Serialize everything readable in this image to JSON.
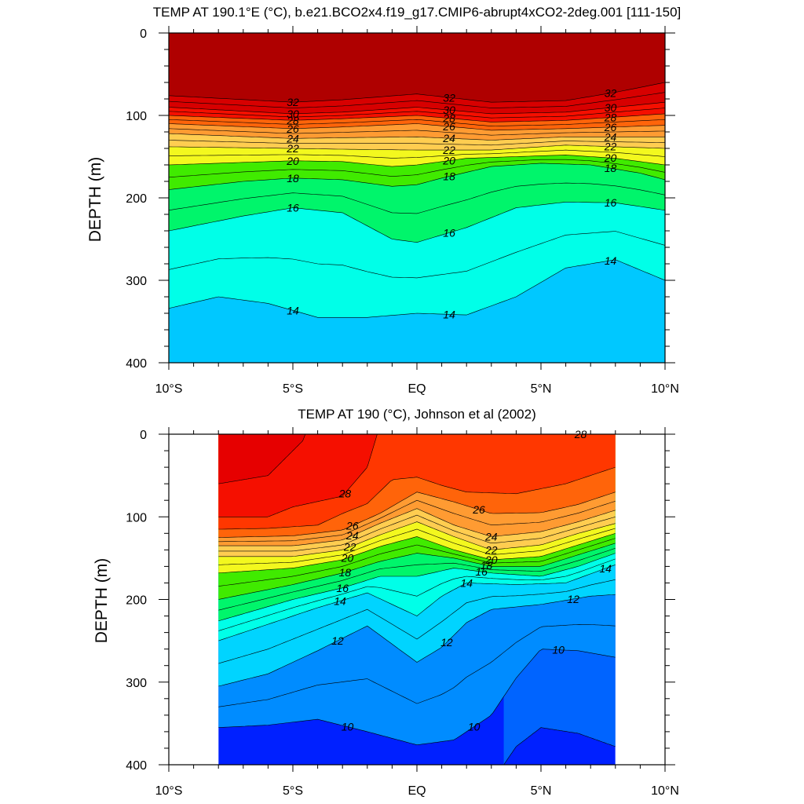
{
  "chart_data": [
    {
      "type": "contour",
      "title": "TEMP AT 190.1°E (°C), b.e21.BCO2x4.f19_g17.CMIP6-abrupt4xCO2-2deg.001 [111-150]",
      "ylabel": "DEPTH (m)",
      "xlabel": "",
      "xlim": [
        -10,
        10
      ],
      "ylim": [
        0,
        400
      ],
      "y_reversed": true,
      "x_ticks": [
        {
          "value": -10,
          "label": "10°S"
        },
        {
          "value": -5,
          "label": "5°S"
        },
        {
          "value": 0,
          "label": "EQ"
        },
        {
          "value": 5,
          "label": "5°N"
        },
        {
          "value": 10,
          "label": "10°N"
        }
      ],
      "y_ticks": [
        {
          "value": 0,
          "label": "0"
        },
        {
          "value": 100,
          "label": "100"
        },
        {
          "value": 200,
          "label": "200"
        },
        {
          "value": 300,
          "label": "300"
        },
        {
          "value": 400,
          "label": "400"
        }
      ],
      "data_x_range": [
        -10,
        10
      ],
      "levels_min": 12.5,
      "levels_max": 32.5,
      "level_step": 1,
      "contours": [
        {
          "level": 32,
          "depth_at_x": [
            [
              -10,
              76
            ],
            [
              -5,
              84
            ],
            [
              -3,
              81
            ],
            [
              0,
              74
            ],
            [
              3,
              84
            ],
            [
              6,
              82
            ],
            [
              8,
              72
            ],
            [
              10,
              60
            ]
          ]
        },
        {
          "level": 30,
          "depth_at_x": [
            [
              -10,
              90
            ],
            [
              -5,
              98
            ],
            [
              -3,
              96
            ],
            [
              0,
              90
            ],
            [
              3,
              98
            ],
            [
              6,
              96
            ],
            [
              8,
              90
            ],
            [
              10,
              84
            ]
          ]
        },
        {
          "level": 28,
          "depth_at_x": [
            [
              -10,
              100
            ],
            [
              -5,
              106
            ],
            [
              -3,
              104
            ],
            [
              0,
              100
            ],
            [
              3,
              108
            ],
            [
              6,
              106
            ],
            [
              8,
              102
            ],
            [
              10,
              98
            ]
          ]
        },
        {
          "level": 26,
          "depth_at_x": [
            [
              -10,
              110
            ],
            [
              -5,
              116
            ],
            [
              -3,
              114
            ],
            [
              0,
              110
            ],
            [
              3,
              118
            ],
            [
              6,
              116
            ],
            [
              8,
              114
            ],
            [
              10,
              112
            ]
          ]
        },
        {
          "level": 24,
          "depth_at_x": [
            [
              -10,
              122
            ],
            [
              -5,
              128
            ],
            [
              -3,
              127
            ],
            [
              0,
              126
            ],
            [
              3,
              130
            ],
            [
              6,
              126
            ],
            [
              8,
              126
            ],
            [
              10,
              126
            ]
          ]
        },
        {
          "level": 22,
          "depth_at_x": [
            [
              -10,
              138
            ],
            [
              -5,
              140
            ],
            [
              -3,
              141
            ],
            [
              0,
              142
            ],
            [
              3,
              142
            ],
            [
              6,
              136
            ],
            [
              8,
              138
            ],
            [
              10,
              140
            ]
          ]
        },
        {
          "level": 20,
          "depth_at_x": [
            [
              -10,
              160
            ],
            [
              -5,
              155
            ],
            [
              -3,
              156
            ],
            [
              -1,
              162
            ],
            [
              0,
              160
            ],
            [
              2,
              152
            ],
            [
              4,
              150
            ],
            [
              6,
              148
            ],
            [
              8,
              152
            ],
            [
              10,
              160
            ]
          ]
        },
        {
          "level": 18,
          "depth_at_x": [
            [
              -10,
              190
            ],
            [
              -7,
              180
            ],
            [
              -5,
              176
            ],
            [
              -3,
              178
            ],
            [
              -1,
              186
            ],
            [
              0,
              184
            ],
            [
              1,
              176
            ],
            [
              3,
              162
            ],
            [
              5,
              158
            ],
            [
              7,
              160
            ],
            [
              9,
              170
            ],
            [
              10,
              178
            ]
          ]
        },
        {
          "level": 16,
          "depth_at_x": [
            [
              -10,
              240
            ],
            [
              -7,
              222
            ],
            [
              -5,
              212
            ],
            [
              -3,
              218
            ],
            [
              -1,
              250
            ],
            [
              0,
              254
            ],
            [
              2,
              236
            ],
            [
              4,
              212
            ],
            [
              6,
              205
            ],
            [
              8,
              206
            ],
            [
              10,
              215
            ]
          ]
        },
        {
          "level": 14,
          "depth_at_x": [
            [
              -10,
              334
            ],
            [
              -8,
              320
            ],
            [
              -6,
              328
            ],
            [
              -4,
              345
            ],
            [
              -2,
              345
            ],
            [
              0,
              340
            ],
            [
              2,
              342
            ],
            [
              4,
              320
            ],
            [
              6,
              285
            ],
            [
              8,
              275
            ],
            [
              10,
              300
            ]
          ]
        }
      ],
      "contour_labels": [
        "32",
        "30",
        "28",
        "26",
        "24",
        "22",
        "20",
        "18",
        "16",
        "14"
      ]
    },
    {
      "type": "contour",
      "title": "TEMP AT 190 (°C), Johnson et al (2002)",
      "ylabel": "DEPTH (m)",
      "xlabel": "",
      "xlim": [
        -10,
        10
      ],
      "ylim": [
        0,
        400
      ],
      "y_reversed": true,
      "x_ticks": [
        {
          "value": -10,
          "label": "10°S"
        },
        {
          "value": -5,
          "label": "5°S"
        },
        {
          "value": 0,
          "label": "EQ"
        },
        {
          "value": 5,
          "label": "5°N"
        },
        {
          "value": 10,
          "label": "10°N"
        }
      ],
      "y_ticks": [
        {
          "value": 0,
          "label": "0"
        },
        {
          "value": 100,
          "label": "100"
        },
        {
          "value": 200,
          "label": "200"
        },
        {
          "value": 300,
          "label": "300"
        },
        {
          "value": 400,
          "label": "400"
        }
      ],
      "data_x_range": [
        -8,
        8
      ],
      "levels_min": 8.5,
      "levels_max": 29.5,
      "level_step": 1,
      "contours": [
        {
          "level": 29,
          "depth_at_x": [
            [
              -8,
              60
            ],
            [
              -6,
              50
            ],
            [
              -4.6,
              8
            ],
            [
              -4.5,
              0
            ]
          ]
        },
        {
          "level": 28,
          "depth_at_x": [
            [
              -8,
              100
            ],
            [
              -6,
              100
            ],
            [
              -5,
              88
            ],
            [
              -3,
              75
            ],
            [
              -2,
              40
            ],
            [
              -1.6,
              0
            ]
          ]
        },
        {
          "level": 27,
          "depth_at_x": [
            [
              -8,
              115
            ],
            [
              -6,
              114
            ],
            [
              -4,
              110
            ],
            [
              -3,
              96
            ],
            [
              -2,
              84
            ],
            [
              -1,
              55
            ],
            [
              0,
              52
            ],
            [
              1,
              62
            ],
            [
              2,
              70
            ],
            [
              4,
              72
            ],
            [
              6,
              60
            ],
            [
              8,
              40
            ]
          ]
        },
        {
          "level": 26,
          "depth_at_x": [
            [
              -8,
              125
            ],
            [
              -5,
              123
            ],
            [
              -3,
              116
            ],
            [
              -1.5,
              96
            ],
            [
              0,
              70
            ],
            [
              1.5,
              82
            ],
            [
              3,
              96
            ],
            [
              5,
              95
            ],
            [
              6.5,
              85
            ],
            [
              8,
              70
            ]
          ]
        },
        {
          "level": 24,
          "depth_at_x": [
            [
              -8,
              135
            ],
            [
              -5,
              135
            ],
            [
              -3,
              128
            ],
            [
              -1.5,
              108
            ],
            [
              0,
              90
            ],
            [
              1.5,
              110
            ],
            [
              3,
              124
            ],
            [
              5,
              118
            ],
            [
              6.5,
              106
            ],
            [
              8,
              92
            ]
          ]
        },
        {
          "level": 22,
          "depth_at_x": [
            [
              -8,
              148
            ],
            [
              -5,
              148
            ],
            [
              -3,
              140
            ],
            [
              -1.5,
              122
            ],
            [
              0,
              106
            ],
            [
              1.5,
              124
            ],
            [
              3,
              140
            ],
            [
              5,
              134
            ],
            [
              6.5,
              120
            ],
            [
              8,
              108
            ]
          ]
        },
        {
          "level": 20,
          "depth_at_x": [
            [
              -8,
              168
            ],
            [
              -5,
              162
            ],
            [
              -3,
              152
            ],
            [
              -1.5,
              136
            ],
            [
              0,
              124
            ],
            [
              1.5,
              140
            ],
            [
              3,
              152
            ],
            [
              5,
              148
            ],
            [
              6.5,
              134
            ],
            [
              8,
              120
            ]
          ]
        },
        {
          "level": 18,
          "depth_at_x": [
            [
              -8,
              200
            ],
            [
              -5,
              182
            ],
            [
              -3,
              168
            ],
            [
              -1.5,
              154
            ],
            [
              0,
              144
            ],
            [
              1.5,
              150
            ],
            [
              3,
              160
            ],
            [
              5,
              160
            ],
            [
              6.5,
              146
            ],
            [
              8,
              132
            ]
          ]
        },
        {
          "level": 16,
          "depth_at_x": [
            [
              -8,
              226
            ],
            [
              -5,
              200
            ],
            [
              -3,
              186
            ],
            [
              -1.5,
              172
            ],
            [
              0,
              172
            ],
            [
              1.5,
              162
            ],
            [
              3,
              168
            ],
            [
              5,
              172
            ],
            [
              6.5,
              160
            ],
            [
              8,
              144
            ]
          ]
        },
        {
          "level": 14,
          "depth_at_x": [
            [
              -8,
              250
            ],
            [
              -6,
              230
            ],
            [
              -4,
              210
            ],
            [
              -2,
              192
            ],
            [
              0,
              220
            ],
            [
              1,
              196
            ],
            [
              2,
              180
            ],
            [
              4,
              182
            ],
            [
              6,
              180
            ],
            [
              8,
              158
            ]
          ]
        },
        {
          "level": 12,
          "depth_at_x": [
            [
              -8,
              305
            ],
            [
              -6,
              290
            ],
            [
              -4,
              262
            ],
            [
              -2,
              232
            ],
            [
              0,
              276
            ],
            [
              1,
              258
            ],
            [
              2,
              228
            ],
            [
              3,
              212
            ],
            [
              5,
              206
            ],
            [
              7,
              196
            ],
            [
              8,
              194
            ]
          ]
        },
        {
          "level": 10,
          "depth_at_x": [
            [
              -8,
              355
            ],
            [
              -6,
              352
            ],
            [
              -4,
              345
            ],
            [
              -2,
              360
            ],
            [
              0,
              376
            ],
            [
              1.5,
              370
            ],
            [
              3,
              340
            ],
            [
              4,
              295
            ],
            [
              5,
              260
            ],
            [
              6.5,
              262
            ],
            [
              8,
              270
            ]
          ]
        },
        {
          "level": 9,
          "depth_at_x": [
            [
              3.5,
              400
            ],
            [
              4,
              378
            ],
            [
              5,
              355
            ],
            [
              6.5,
              362
            ],
            [
              8,
              378
            ]
          ]
        }
      ],
      "contour_labels": [
        "28",
        "28",
        "26",
        "26",
        "24",
        "24",
        "22",
        "22",
        "20",
        "20",
        "18",
        "18",
        "16",
        "16",
        "14",
        "14",
        "14",
        "12",
        "12",
        "12",
        "10",
        "10",
        "10"
      ]
    }
  ]
}
